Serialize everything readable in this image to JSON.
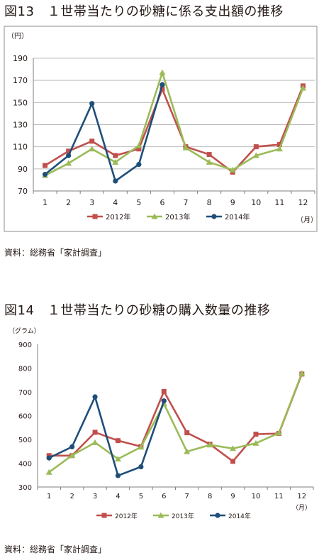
{
  "figures": [
    {
      "title": "図13　１世帯当たりの砂糖に係る支出額の推移",
      "source": "資料：総務省「家計調査」"
    },
    {
      "title": "図14　１世帯当たりの砂糖の購入数量の推移",
      "source": "資料：総務省「家計調査」"
    }
  ],
  "series_colors": {
    "2012年": "#c0504d",
    "2013年": "#9bbb59",
    "2014年": "#1f4e79"
  },
  "chart_data": [
    {
      "type": "line",
      "ylabel": "（円）",
      "xlabel": "（月）",
      "x": [
        "1",
        "2",
        "3",
        "4",
        "5",
        "6",
        "7",
        "8",
        "9",
        "10",
        "11",
        "12"
      ],
      "ylim": [
        70,
        190
      ],
      "yticks": [
        70,
        90,
        110,
        130,
        150,
        170,
        190
      ],
      "grid": true,
      "legend": "bottom",
      "series": [
        {
          "name": "2012年",
          "marker": "square",
          "values": [
            93,
            106,
            115,
            102,
            108,
            162,
            110,
            103,
            87,
            110,
            112,
            165
          ]
        },
        {
          "name": "2013年",
          "marker": "triangle",
          "values": [
            84,
            95,
            108,
            96,
            111,
            177,
            109,
            96,
            89,
            102,
            108,
            163
          ]
        },
        {
          "name": "2014年",
          "marker": "circle",
          "values": [
            85,
            102,
            149,
            79,
            94,
            166,
            null,
            null,
            null,
            null,
            null,
            null
          ]
        }
      ]
    },
    {
      "type": "line",
      "ylabel": "（グラム）",
      "xlabel": "（月）",
      "x": [
        "1",
        "2",
        "3",
        "4",
        "5",
        "6",
        "7",
        "8",
        "9",
        "10",
        "11",
        "12"
      ],
      "ylim": [
        300,
        900
      ],
      "yticks": [
        300,
        400,
        500,
        600,
        700,
        800,
        900
      ],
      "grid": false,
      "legend": "bottom",
      "series": [
        {
          "name": "2012年",
          "marker": "square",
          "values": [
            432,
            432,
            530,
            495,
            470,
            702,
            528,
            480,
            408,
            522,
            525,
            775
          ]
        },
        {
          "name": "2013年",
          "marker": "triangle",
          "values": [
            362,
            433,
            487,
            418,
            468,
            650,
            449,
            477,
            462,
            484,
            527,
            778
          ]
        },
        {
          "name": "2014年",
          "marker": "circle",
          "values": [
            422,
            469,
            679,
            348,
            385,
            662,
            null,
            null,
            null,
            null,
            null,
            null
          ]
        }
      ]
    }
  ]
}
